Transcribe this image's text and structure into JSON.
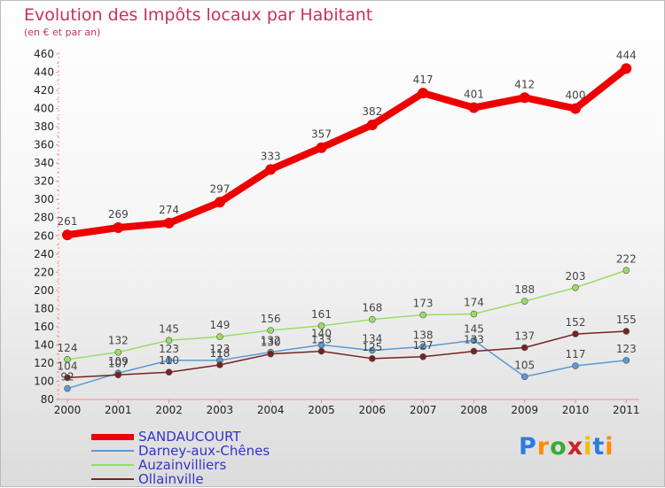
{
  "chart_data": {
    "type": "line",
    "title": "Evolution des Impôts locaux par Habitant",
    "subtitle": "(en € et par an)",
    "categories": [
      "2000",
      "2001",
      "2002",
      "2003",
      "2004",
      "2005",
      "2006",
      "2007",
      "2008",
      "2009",
      "2010",
      "2011"
    ],
    "ylim": [
      80,
      460
    ],
    "ytick_step": 20,
    "series": [
      {
        "name": "SANDAUCOURT",
        "color": "#ee0000",
        "values": [
          261,
          269,
          274,
          297,
          333,
          357,
          382,
          417,
          401,
          412,
          400,
          444
        ]
      },
      {
        "name": "Darney-aux-Chênes",
        "color": "#5a9ad6",
        "values": [
          92,
          109,
          123,
          123,
          132,
          140,
          134,
          138,
          145,
          105,
          117,
          123
        ]
      },
      {
        "name": "Auzainvilliers",
        "color": "#99dd66",
        "values": [
          124,
          132,
          145,
          149,
          156,
          161,
          168,
          173,
          174,
          188,
          203,
          222
        ]
      },
      {
        "name": "Ollainville",
        "color": "#772222",
        "values": [
          104,
          107,
          110,
          118,
          130,
          133,
          125,
          127,
          133,
          137,
          152,
          155
        ]
      }
    ]
  },
  "legend_text_color": "#3333cc",
  "logo": {
    "letters": [
      "P",
      "r",
      "o",
      "x",
      "i",
      "t",
      "i"
    ],
    "colors": [
      "#2a7de1",
      "#ff8c00",
      "#3aaa35",
      "#cc2222",
      "#f0c000",
      "#2a7de1",
      "#ff8c00"
    ]
  }
}
